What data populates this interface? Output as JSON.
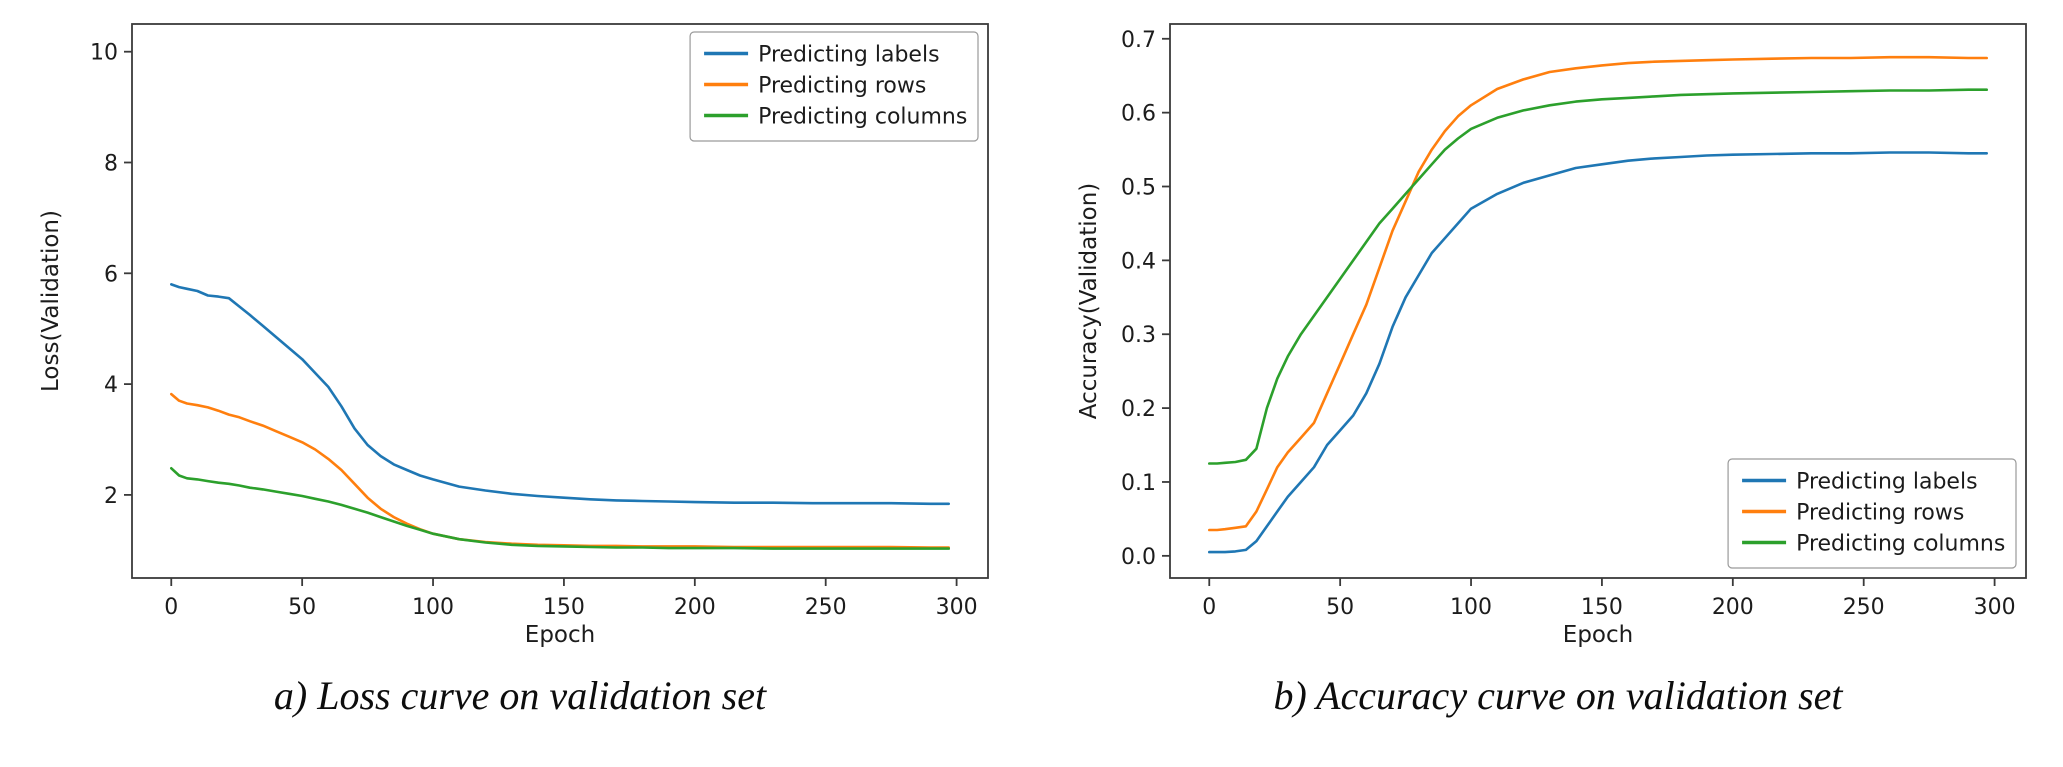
{
  "page": {
    "background": "#ffffff"
  },
  "chart_data": [
    {
      "type": "line",
      "title": "",
      "caption": "a) Loss curve on validation set",
      "xlabel": "Epoch",
      "ylabel": "Loss(Validation)",
      "xlim": [
        -15,
        312
      ],
      "ylim": [
        0.5,
        10.5
      ],
      "grid": false,
      "legend_position": "top-right",
      "xtick_values": [
        0,
        50,
        100,
        150,
        200,
        250,
        300
      ],
      "xtick_labels": [
        "0",
        "50",
        "100",
        "150",
        "200",
        "250",
        "300"
      ],
      "ytick_values": [
        2,
        4,
        6,
        8,
        10
      ],
      "ytick_labels": [
        "2",
        "4",
        "6",
        "8",
        "10"
      ],
      "x": [
        0,
        3,
        6,
        10,
        14,
        18,
        22,
        26,
        30,
        35,
        40,
        45,
        50,
        55,
        60,
        65,
        70,
        75,
        80,
        85,
        90,
        95,
        100,
        110,
        120,
        130,
        140,
        150,
        160,
        170,
        180,
        190,
        200,
        215,
        230,
        245,
        260,
        275,
        290,
        297
      ],
      "series": [
        {
          "name": "Predicting labels",
          "color": "#1f77b4",
          "values": [
            5.8,
            5.75,
            5.72,
            5.68,
            5.6,
            5.58,
            5.55,
            5.4,
            5.25,
            5.05,
            4.85,
            4.65,
            4.45,
            4.2,
            3.95,
            3.6,
            3.2,
            2.9,
            2.7,
            2.55,
            2.45,
            2.35,
            2.28,
            2.15,
            2.08,
            2.02,
            1.98,
            1.95,
            1.92,
            1.9,
            1.89,
            1.88,
            1.87,
            1.86,
            1.86,
            1.85,
            1.85,
            1.85,
            1.84,
            1.84
          ]
        },
        {
          "name": "Predicting rows",
          "color": "#ff7f0e",
          "values": [
            3.82,
            3.7,
            3.65,
            3.62,
            3.58,
            3.52,
            3.45,
            3.4,
            3.33,
            3.25,
            3.15,
            3.05,
            2.95,
            2.82,
            2.65,
            2.45,
            2.2,
            1.95,
            1.75,
            1.6,
            1.48,
            1.38,
            1.3,
            1.2,
            1.15,
            1.12,
            1.1,
            1.09,
            1.08,
            1.08,
            1.07,
            1.07,
            1.07,
            1.06,
            1.06,
            1.06,
            1.06,
            1.06,
            1.05,
            1.05
          ]
        },
        {
          "name": "Predicting columns",
          "color": "#2ca02c",
          "values": [
            2.48,
            2.35,
            2.3,
            2.28,
            2.25,
            2.22,
            2.2,
            2.17,
            2.13,
            2.1,
            2.06,
            2.02,
            1.98,
            1.93,
            1.88,
            1.82,
            1.75,
            1.68,
            1.6,
            1.52,
            1.44,
            1.37,
            1.3,
            1.2,
            1.14,
            1.1,
            1.08,
            1.07,
            1.06,
            1.05,
            1.05,
            1.04,
            1.04,
            1.04,
            1.03,
            1.03,
            1.03,
            1.03,
            1.03,
            1.03
          ]
        }
      ]
    },
    {
      "type": "line",
      "title": "",
      "caption": "b) Accuracy curve on validation set",
      "xlabel": "Epoch",
      "ylabel": "Accuracy(Validation)",
      "xlim": [
        -15,
        312
      ],
      "ylim": [
        -0.03,
        0.72
      ],
      "grid": false,
      "legend_position": "bottom-right",
      "xtick_values": [
        0,
        50,
        100,
        150,
        200,
        250,
        300
      ],
      "xtick_labels": [
        "0",
        "50",
        "100",
        "150",
        "200",
        "250",
        "300"
      ],
      "ytick_values": [
        0.0,
        0.1,
        0.2,
        0.3,
        0.4,
        0.5,
        0.6,
        0.7
      ],
      "ytick_labels": [
        "0.0",
        "0.1",
        "0.2",
        "0.3",
        "0.4",
        "0.5",
        "0.6",
        "0.7"
      ],
      "x": [
        0,
        3,
        6,
        10,
        14,
        18,
        22,
        26,
        30,
        35,
        40,
        45,
        50,
        55,
        60,
        65,
        70,
        75,
        80,
        85,
        90,
        95,
        100,
        110,
        120,
        130,
        140,
        150,
        160,
        170,
        180,
        190,
        200,
        215,
        230,
        245,
        260,
        275,
        290,
        297
      ],
      "series": [
        {
          "name": "Predicting labels",
          "color": "#1f77b4",
          "values": [
            0.005,
            0.005,
            0.005,
            0.006,
            0.008,
            0.02,
            0.04,
            0.06,
            0.08,
            0.1,
            0.12,
            0.15,
            0.17,
            0.19,
            0.22,
            0.26,
            0.31,
            0.35,
            0.38,
            0.41,
            0.43,
            0.45,
            0.47,
            0.49,
            0.505,
            0.515,
            0.525,
            0.53,
            0.535,
            0.538,
            0.54,
            0.542,
            0.543,
            0.544,
            0.545,
            0.545,
            0.546,
            0.546,
            0.545,
            0.545
          ]
        },
        {
          "name": "Predicting rows",
          "color": "#ff7f0e",
          "values": [
            0.035,
            0.035,
            0.036,
            0.038,
            0.04,
            0.06,
            0.09,
            0.12,
            0.14,
            0.16,
            0.18,
            0.22,
            0.26,
            0.3,
            0.34,
            0.39,
            0.44,
            0.48,
            0.52,
            0.55,
            0.575,
            0.595,
            0.61,
            0.632,
            0.645,
            0.655,
            0.66,
            0.664,
            0.667,
            0.669,
            0.67,
            0.671,
            0.672,
            0.673,
            0.674,
            0.674,
            0.675,
            0.675,
            0.674,
            0.674
          ]
        },
        {
          "name": "Predicting columns",
          "color": "#2ca02c",
          "values": [
            0.125,
            0.125,
            0.126,
            0.127,
            0.13,
            0.145,
            0.2,
            0.24,
            0.27,
            0.3,
            0.325,
            0.35,
            0.375,
            0.4,
            0.425,
            0.45,
            0.47,
            0.49,
            0.51,
            0.53,
            0.55,
            0.565,
            0.578,
            0.593,
            0.603,
            0.61,
            0.615,
            0.618,
            0.62,
            0.622,
            0.624,
            0.625,
            0.626,
            0.627,
            0.628,
            0.629,
            0.63,
            0.63,
            0.631,
            0.631
          ]
        }
      ]
    }
  ]
}
